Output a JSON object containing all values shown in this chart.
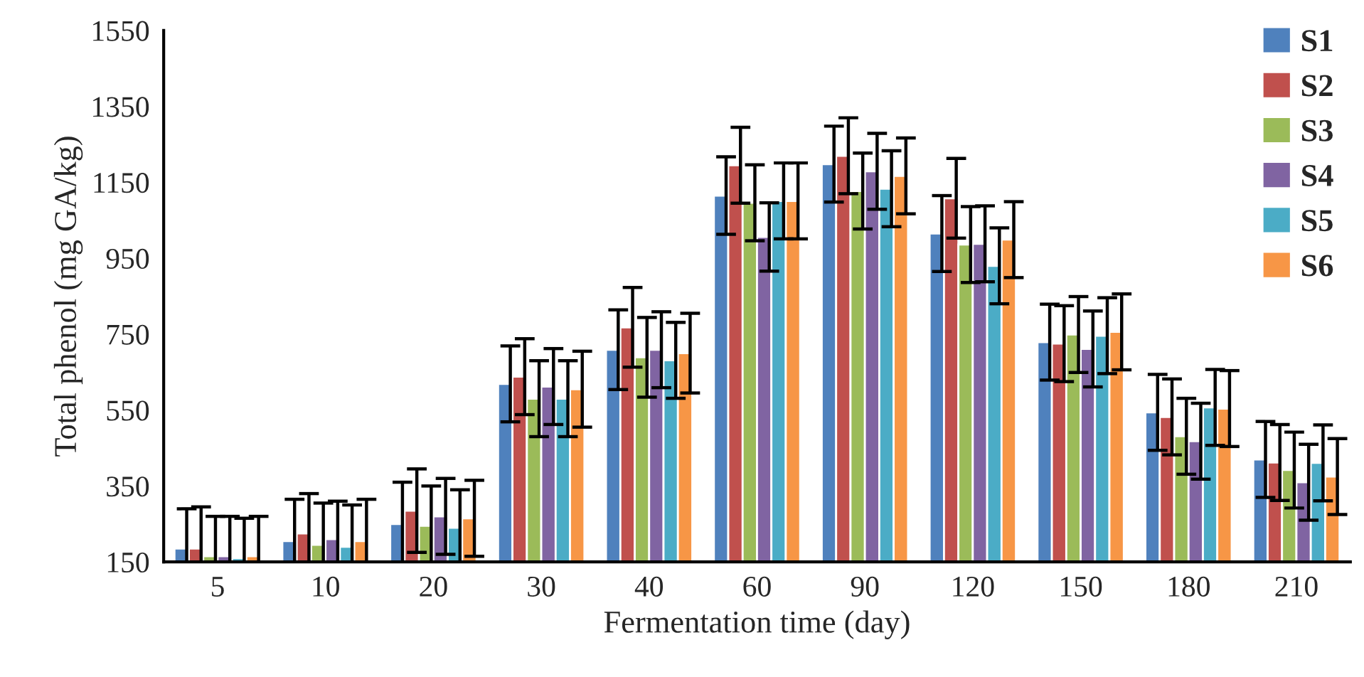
{
  "chart_data": {
    "type": "bar",
    "xlabel": "Fermentation time (day)",
    "ylabel": "Total phenol (mg GA/kg)",
    "categories": [
      "5",
      "10",
      "20",
      "30",
      "40",
      "60",
      "90",
      "120",
      "150",
      "180",
      "210"
    ],
    "ylim": [
      150,
      1550
    ],
    "yticks": [
      150,
      350,
      550,
      750,
      950,
      1150,
      1350,
      1550
    ],
    "grid": false,
    "legend": "top right",
    "series": [
      {
        "name": "S1",
        "color": "#4f81bd",
        "values": [
          185,
          205,
          250,
          619,
          709,
          1115,
          1198,
          1015,
          729,
          544,
          420
        ],
        "errors": [
          105,
          110,
          110,
          100,
          105,
          102,
          100,
          100,
          100,
          100,
          100
        ]
      },
      {
        "name": "S2",
        "color": "#c0504d",
        "values": [
          185,
          225,
          285,
          638,
          768,
          1195,
          1220,
          1108,
          725,
          532,
          412
        ],
        "errors": [
          110,
          105,
          110,
          100,
          105,
          100,
          100,
          105,
          100,
          100,
          100
        ]
      },
      {
        "name": "S3",
        "color": "#9bbb59",
        "values": [
          165,
          195,
          245,
          580,
          689,
          1096,
          1127,
          986,
          749,
          481,
          392
        ],
        "errors": [
          105,
          110,
          105,
          100,
          105,
          100,
          100,
          100,
          100,
          100,
          100
        ]
      },
      {
        "name": "S4",
        "color": "#8064a2",
        "values": [
          165,
          210,
          270,
          612,
          709,
          1006,
          1179,
          988,
          711,
          468,
          360
        ],
        "errors": [
          105,
          100,
          100,
          100,
          100,
          90,
          100,
          100,
          100,
          100,
          100
        ]
      },
      {
        "name": "S5",
        "color": "#4bacc6",
        "values": [
          160,
          190,
          240,
          580,
          681,
          1101,
          1133,
          930,
          746,
          557,
          411
        ],
        "errors": [
          105,
          110,
          100,
          100,
          100,
          100,
          100,
          100,
          100,
          100,
          100
        ]
      },
      {
        "name": "S6",
        "color": "#f79646",
        "values": [
          165,
          205,
          265,
          605,
          700,
          1101,
          1167,
          999,
          756,
          554,
          375
        ],
        "errors": [
          105,
          110,
          100,
          100,
          105,
          100,
          100,
          100,
          100,
          100,
          100
        ]
      }
    ]
  }
}
